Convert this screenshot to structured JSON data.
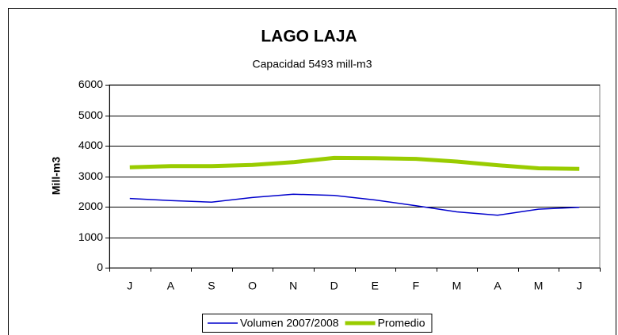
{
  "chart_data": {
    "type": "line",
    "title": "LAGO LAJA",
    "subtitle": "Capacidad  5493 mill-m3",
    "y_label": "Mill-m3",
    "categories": [
      "J",
      "A",
      "S",
      "O",
      "N",
      "D",
      "E",
      "F",
      "M",
      "A",
      "M",
      "J"
    ],
    "series": [
      {
        "name": "Volumen  2007/2008",
        "color": "#0000cc",
        "width": 1.5,
        "values": [
          2270,
          2200,
          2150,
          2300,
          2410,
          2370,
          2220,
          2030,
          1830,
          1720,
          1920,
          1980
        ]
      },
      {
        "name": "Promedio",
        "color": "#99cc00",
        "width": 5,
        "values": [
          3290,
          3330,
          3330,
          3370,
          3460,
          3600,
          3590,
          3570,
          3480,
          3360,
          3260,
          3240
        ]
      }
    ],
    "ylim": [
      0,
      6000
    ],
    "yticks": [
      0,
      1000,
      2000,
      3000,
      4000,
      5000,
      6000
    ],
    "grid": true,
    "legend": "bottom"
  }
}
